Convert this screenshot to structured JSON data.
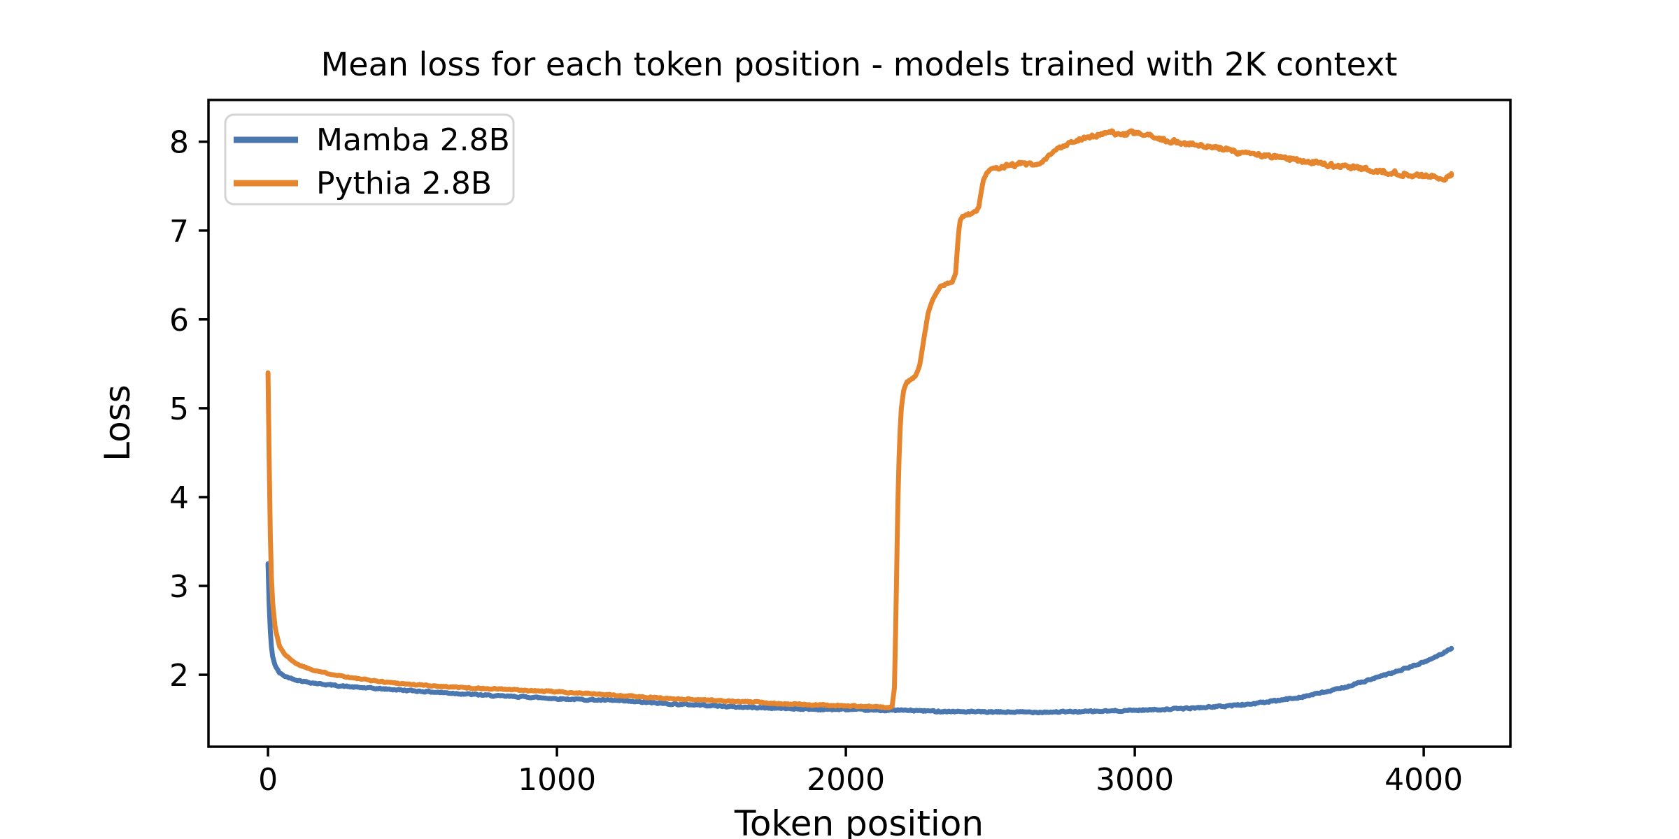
{
  "chart_data": {
    "type": "line",
    "title": "Mean loss for each token position - models trained with 2K context",
    "xlabel": "Token position",
    "ylabel": "Loss",
    "xlim": [
      -206,
      4300
    ],
    "ylim": [
      1.19,
      8.47
    ],
    "x_ticks": [
      0,
      1000,
      2000,
      3000,
      4000
    ],
    "y_ticks": [
      2,
      3,
      4,
      5,
      6,
      7,
      8
    ],
    "x_tick_labels": [
      "0",
      "1000",
      "2000",
      "3000",
      "4000"
    ],
    "y_tick_labels": [
      "2",
      "3",
      "4",
      "5",
      "6",
      "7",
      "8"
    ],
    "grid": false,
    "legend_position": "upper left",
    "series": [
      {
        "name": "Mamba 2.8B",
        "color": "#4a77b0",
        "noise_segments": [
          {
            "to": 3300,
            "amp": 0.011
          },
          {
            "to": 4096,
            "amp": 0.016
          }
        ],
        "points": [
          [
            0,
            3.25
          ],
          [
            3,
            2.9
          ],
          [
            6,
            2.6
          ],
          [
            10,
            2.38
          ],
          [
            15,
            2.22
          ],
          [
            25,
            2.1
          ],
          [
            40,
            2.02
          ],
          [
            60,
            1.98
          ],
          [
            100,
            1.94
          ],
          [
            150,
            1.91
          ],
          [
            200,
            1.89
          ],
          [
            300,
            1.86
          ],
          [
            400,
            1.84
          ],
          [
            500,
            1.82
          ],
          [
            600,
            1.8
          ],
          [
            700,
            1.78
          ],
          [
            800,
            1.76
          ],
          [
            900,
            1.75
          ],
          [
            1000,
            1.73
          ],
          [
            1100,
            1.72
          ],
          [
            1200,
            1.71
          ],
          [
            1300,
            1.69
          ],
          [
            1400,
            1.67
          ],
          [
            1500,
            1.66
          ],
          [
            1600,
            1.64
          ],
          [
            1700,
            1.63
          ],
          [
            1800,
            1.62
          ],
          [
            1900,
            1.61
          ],
          [
            2000,
            1.61
          ],
          [
            2100,
            1.6
          ],
          [
            2200,
            1.6
          ],
          [
            2300,
            1.59
          ],
          [
            2400,
            1.585
          ],
          [
            2500,
            1.58
          ],
          [
            2600,
            1.58
          ],
          [
            2700,
            1.58
          ],
          [
            2800,
            1.585
          ],
          [
            2900,
            1.59
          ],
          [
            3000,
            1.6
          ],
          [
            3100,
            1.61
          ],
          [
            3200,
            1.625
          ],
          [
            3300,
            1.645
          ],
          [
            3400,
            1.67
          ],
          [
            3500,
            1.71
          ],
          [
            3600,
            1.765
          ],
          [
            3700,
            1.835
          ],
          [
            3800,
            1.93
          ],
          [
            3900,
            2.03
          ],
          [
            4000,
            2.14
          ],
          [
            4060,
            2.23
          ],
          [
            4096,
            2.3
          ]
        ]
      },
      {
        "name": "Pythia 2.8B",
        "color": "#e5852e",
        "noise_segments": [
          {
            "to": 2160,
            "amp": 0.011
          },
          {
            "to": 2520,
            "amp": 0.02
          },
          {
            "to": 4096,
            "amp": 0.038
          }
        ],
        "points": [
          [
            0,
            5.4
          ],
          [
            3,
            4.7
          ],
          [
            6,
            3.9
          ],
          [
            10,
            3.25
          ],
          [
            15,
            2.85
          ],
          [
            25,
            2.52
          ],
          [
            40,
            2.32
          ],
          [
            60,
            2.22
          ],
          [
            100,
            2.12
          ],
          [
            150,
            2.06
          ],
          [
            200,
            2.02
          ],
          [
            300,
            1.96
          ],
          [
            400,
            1.92
          ],
          [
            500,
            1.89
          ],
          [
            600,
            1.87
          ],
          [
            700,
            1.85
          ],
          [
            800,
            1.84
          ],
          [
            900,
            1.82
          ],
          [
            1000,
            1.81
          ],
          [
            1100,
            1.79
          ],
          [
            1200,
            1.77
          ],
          [
            1300,
            1.75
          ],
          [
            1400,
            1.73
          ],
          [
            1500,
            1.72
          ],
          [
            1600,
            1.7
          ],
          [
            1700,
            1.69
          ],
          [
            1800,
            1.67
          ],
          [
            1900,
            1.66
          ],
          [
            2000,
            1.65
          ],
          [
            2100,
            1.64
          ],
          [
            2150,
            1.63
          ],
          [
            2160,
            1.64
          ],
          [
            2168,
            1.85
          ],
          [
            2173,
            2.6
          ],
          [
            2177,
            3.4
          ],
          [
            2181,
            4.1
          ],
          [
            2186,
            4.65
          ],
          [
            2192,
            5.0
          ],
          [
            2200,
            5.2
          ],
          [
            2210,
            5.29
          ],
          [
            2225,
            5.32
          ],
          [
            2240,
            5.36
          ],
          [
            2255,
            5.47
          ],
          [
            2270,
            5.78
          ],
          [
            2285,
            6.08
          ],
          [
            2300,
            6.22
          ],
          [
            2315,
            6.31
          ],
          [
            2330,
            6.38
          ],
          [
            2350,
            6.4
          ],
          [
            2368,
            6.42
          ],
          [
            2380,
            6.52
          ],
          [
            2387,
            6.85
          ],
          [
            2394,
            7.1
          ],
          [
            2405,
            7.16
          ],
          [
            2420,
            7.18
          ],
          [
            2438,
            7.19
          ],
          [
            2452,
            7.22
          ],
          [
            2460,
            7.27
          ],
          [
            2468,
            7.43
          ],
          [
            2476,
            7.57
          ],
          [
            2488,
            7.65
          ],
          [
            2500,
            7.69
          ],
          [
            2520,
            7.71
          ],
          [
            2550,
            7.73
          ],
          [
            2580,
            7.74
          ],
          [
            2610,
            7.75
          ],
          [
            2640,
            7.74
          ],
          [
            2660,
            7.72
          ],
          [
            2680,
            7.77
          ],
          [
            2700,
            7.83
          ],
          [
            2720,
            7.89
          ],
          [
            2742,
            7.94
          ],
          [
            2770,
            7.98
          ],
          [
            2800,
            8.02
          ],
          [
            2830,
            8.05
          ],
          [
            2860,
            8.06
          ],
          [
            2890,
            8.09
          ],
          [
            2920,
            8.1
          ],
          [
            2950,
            8.07
          ],
          [
            2980,
            8.09
          ],
          [
            3010,
            8.1
          ],
          [
            3040,
            8.07
          ],
          [
            3080,
            8.04
          ],
          [
            3120,
            8.01
          ],
          [
            3160,
            7.99
          ],
          [
            3200,
            7.97
          ],
          [
            3250,
            7.94
          ],
          [
            3300,
            7.92
          ],
          [
            3350,
            7.89
          ],
          [
            3400,
            7.87
          ],
          [
            3450,
            7.84
          ],
          [
            3500,
            7.82
          ],
          [
            3550,
            7.8
          ],
          [
            3600,
            7.78
          ],
          [
            3650,
            7.75
          ],
          [
            3700,
            7.73
          ],
          [
            3750,
            7.71
          ],
          [
            3800,
            7.69
          ],
          [
            3850,
            7.67
          ],
          [
            3900,
            7.65
          ],
          [
            3950,
            7.63
          ],
          [
            4000,
            7.62
          ],
          [
            4040,
            7.6
          ],
          [
            4070,
            7.58
          ],
          [
            4096,
            7.63
          ]
        ]
      }
    ]
  }
}
